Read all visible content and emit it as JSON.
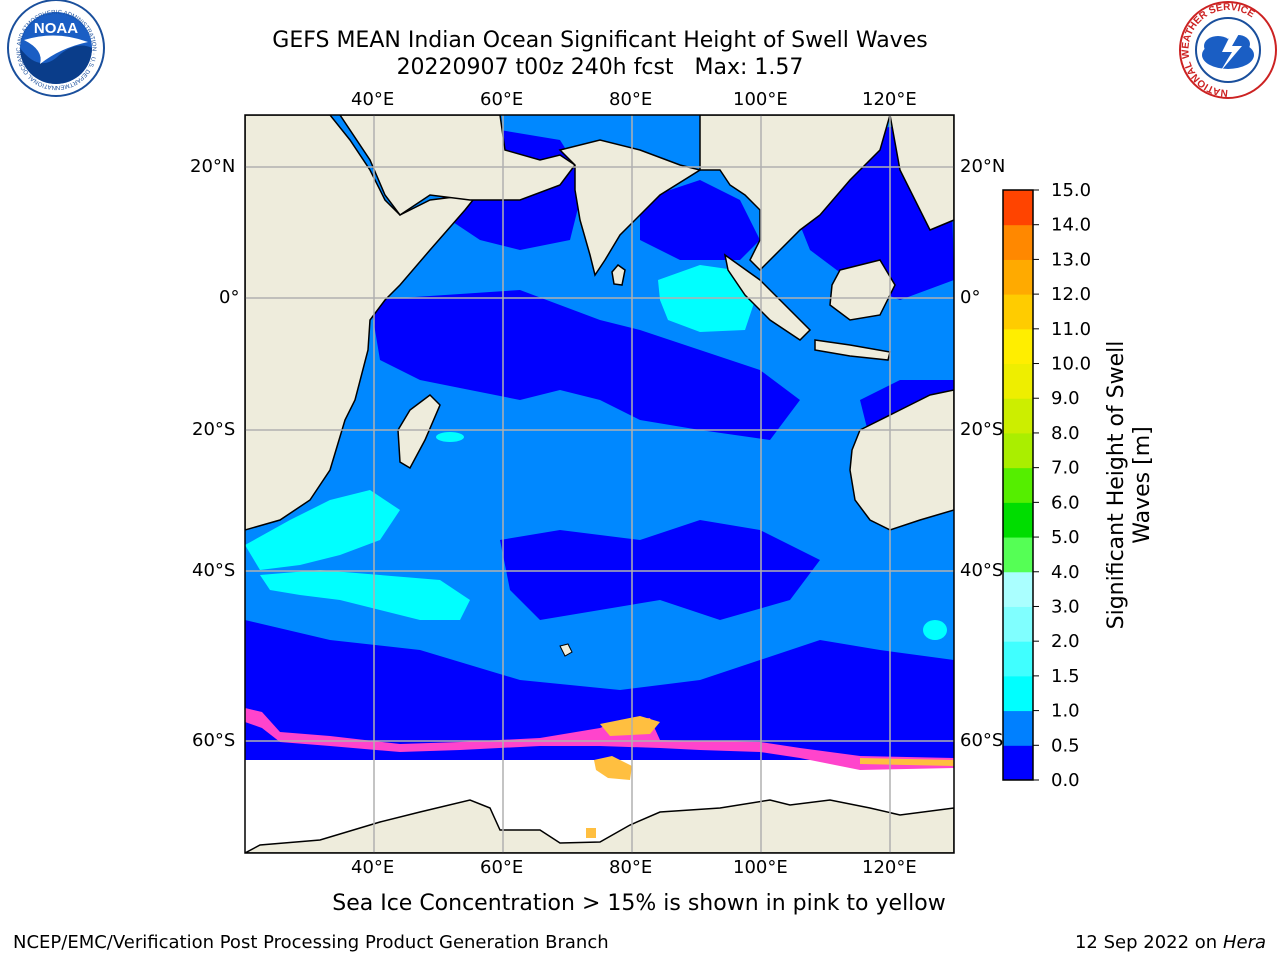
{
  "header": {
    "title": "GEFS MEAN Indian Ocean Significant Height of Swell Waves",
    "subtitle_run": "20220907 t00z 240h fcst",
    "subtitle_max": "Max: 1.57"
  },
  "logos": {
    "noaa": {
      "text": "NOAA",
      "ring_text": "NATIONAL OCEANIC AND ATMOSPHERIC ADMINISTRATION · U.S. DEPARTMENT OF COMMERCE"
    },
    "nws": {
      "ring_text": "NATIONAL WEATHER SERVICE"
    }
  },
  "map": {
    "lon_ticks": [
      "40°E",
      "60°E",
      "80°E",
      "100°E",
      "120°E"
    ],
    "lat_ticks": [
      "20°N",
      "0°",
      "20°S",
      "40°S",
      "60°S"
    ],
    "colors": {
      "land": "#eeecdc",
      "ocean_low": "#0000ff",
      "ocean_mid": "#0088ff",
      "ocean_high": "#00ffff",
      "sea_ice_edge": "#ff44cc",
      "sea_ice_yellow": "#ffbf40",
      "antarctic_white": "#ffffff",
      "grid": "#b0b0b0"
    }
  },
  "colorbar": {
    "label_line1": "Significant Height of Swell",
    "label_line2": "Waves [m]",
    "levels": [
      "0.0",
      "0.5",
      "1.0",
      "1.5",
      "2.0",
      "3.0",
      "4.0",
      "5.0",
      "6.0",
      "7.0",
      "8.0",
      "9.0",
      "10.0",
      "11.0",
      "12.0",
      "13.0",
      "14.0",
      "15.0"
    ],
    "colors": [
      "#0000ff",
      "#0080ff",
      "#00ffff",
      "#40ffff",
      "#80ffff",
      "#aaffff",
      "#55ff55",
      "#00dd00",
      "#55ee00",
      "#aaee00",
      "#ccee00",
      "#eeee00",
      "#ffee00",
      "#ffcc00",
      "#ffaa00",
      "#ff8800",
      "#ff4400",
      "#ff0000"
    ]
  },
  "footer": {
    "note": "Sea Ice Concentration > 15% is shown in pink to yellow",
    "credit": "NCEP/EMC/Verification Post Processing Product Generation Branch",
    "date": "12 Sep 2022 on",
    "machine": "Hera"
  }
}
